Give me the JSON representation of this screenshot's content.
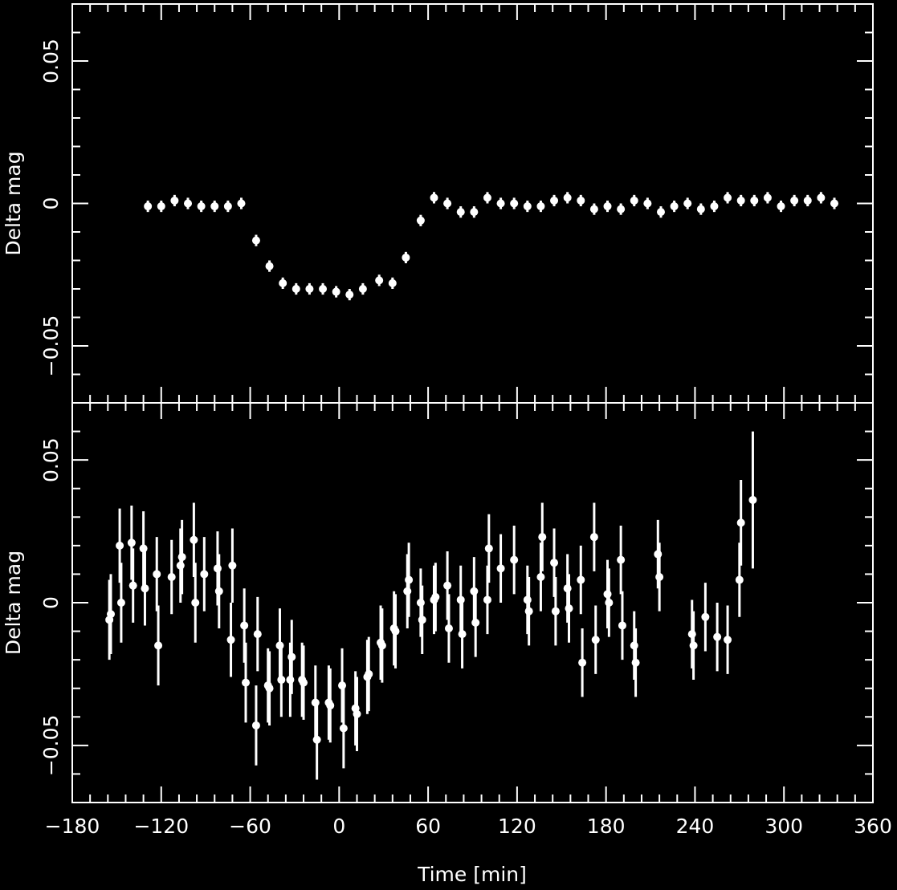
{
  "chart_data": [
    {
      "type": "scatter",
      "title": "",
      "xlabel": "",
      "ylabel": "Delta mag",
      "xlim": [
        -180,
        360
      ],
      "ylim": [
        -0.07,
        0.07
      ],
      "x_ticks": [
        -180,
        -120,
        -60,
        0,
        60,
        120,
        180,
        240,
        300,
        360
      ],
      "y_ticks": [
        -0.05,
        0,
        0.05
      ],
      "y_tick_labels": [
        "−0.05",
        "0",
        "0.05"
      ],
      "grid": false,
      "series": [
        {
          "error_bars": true,
          "points": [
            {
              "x": -129,
              "y": -0.001,
              "err": 0.002
            },
            {
              "x": -120,
              "y": -0.001,
              "err": 0.002
            },
            {
              "x": -111,
              "y": 0.001,
              "err": 0.002
            },
            {
              "x": -102,
              "y": 0.0,
              "err": 0.002
            },
            {
              "x": -93,
              "y": -0.001,
              "err": 0.002
            },
            {
              "x": -84,
              "y": -0.001,
              "err": 0.002
            },
            {
              "x": -75,
              "y": -0.001,
              "err": 0.002
            },
            {
              "x": -66,
              "y": 0.0,
              "err": 0.002
            },
            {
              "x": -56,
              "y": -0.013,
              "err": 0.002
            },
            {
              "x": -47,
              "y": -0.022,
              "err": 0.002
            },
            {
              "x": -38,
              "y": -0.028,
              "err": 0.002
            },
            {
              "x": -29,
              "y": -0.03,
              "err": 0.002
            },
            {
              "x": -20,
              "y": -0.03,
              "err": 0.002
            },
            {
              "x": -11,
              "y": -0.03,
              "err": 0.002
            },
            {
              "x": -2,
              "y": -0.031,
              "err": 0.002
            },
            {
              "x": 7,
              "y": -0.032,
              "err": 0.002
            },
            {
              "x": 16,
              "y": -0.03,
              "err": 0.002
            },
            {
              "x": 27,
              "y": -0.027,
              "err": 0.002
            },
            {
              "x": 36,
              "y": -0.028,
              "err": 0.002
            },
            {
              "x": 45,
              "y": -0.019,
              "err": 0.002
            },
            {
              "x": 55,
              "y": -0.006,
              "err": 0.002
            },
            {
              "x": 64,
              "y": 0.002,
              "err": 0.002
            },
            {
              "x": 73,
              "y": 0.0,
              "err": 0.002
            },
            {
              "x": 82,
              "y": -0.003,
              "err": 0.002
            },
            {
              "x": 91,
              "y": -0.003,
              "err": 0.002
            },
            {
              "x": 100,
              "y": 0.002,
              "err": 0.002
            },
            {
              "x": 109,
              "y": 0.0,
              "err": 0.002
            },
            {
              "x": 118,
              "y": 0.0,
              "err": 0.002
            },
            {
              "x": 127,
              "y": -0.001,
              "err": 0.002
            },
            {
              "x": 136,
              "y": -0.001,
              "err": 0.002
            },
            {
              "x": 145,
              "y": 0.001,
              "err": 0.002
            },
            {
              "x": 154,
              "y": 0.002,
              "err": 0.002
            },
            {
              "x": 163,
              "y": 0.001,
              "err": 0.002
            },
            {
              "x": 172,
              "y": -0.002,
              "err": 0.002
            },
            {
              "x": 181,
              "y": -0.001,
              "err": 0.002
            },
            {
              "x": 190,
              "y": -0.002,
              "err": 0.002
            },
            {
              "x": 199,
              "y": 0.001,
              "err": 0.002
            },
            {
              "x": 208,
              "y": 0.0,
              "err": 0.002
            },
            {
              "x": 217,
              "y": -0.003,
              "err": 0.002
            },
            {
              "x": 226,
              "y": -0.001,
              "err": 0.002
            },
            {
              "x": 235,
              "y": 0.0,
              "err": 0.002
            },
            {
              "x": 244,
              "y": -0.002,
              "err": 0.002
            },
            {
              "x": 253,
              "y": -0.001,
              "err": 0.002
            },
            {
              "x": 262,
              "y": 0.002,
              "err": 0.002
            },
            {
              "x": 271,
              "y": 0.001,
              "err": 0.002
            },
            {
              "x": 280,
              "y": 0.001,
              "err": 0.002
            },
            {
              "x": 289,
              "y": 0.002,
              "err": 0.002
            },
            {
              "x": 298,
              "y": -0.001,
              "err": 0.002
            },
            {
              "x": 307,
              "y": 0.001,
              "err": 0.002
            },
            {
              "x": 316,
              "y": 0.001,
              "err": 0.002
            },
            {
              "x": 325,
              "y": 0.002,
              "err": 0.002
            },
            {
              "x": 334,
              "y": 0.0,
              "err": 0.002
            }
          ]
        }
      ]
    },
    {
      "type": "scatter",
      "title": "",
      "xlabel": "Time [min]",
      "ylabel": "Delta mag",
      "xlim": [
        -180,
        360
      ],
      "ylim": [
        -0.07,
        0.07
      ],
      "x_ticks": [
        -180,
        -120,
        -60,
        0,
        60,
        120,
        180,
        240,
        300,
        360
      ],
      "x_tick_labels": [
        "−180",
        "−120",
        "−60",
        "0",
        "60",
        "120",
        "180",
        "240",
        "300",
        "360"
      ],
      "y_ticks": [
        -0.05,
        0,
        0.05
      ],
      "y_tick_labels": [
        "−0.05",
        "0",
        "0.05"
      ],
      "grid": false,
      "series": [
        {
          "error_bars": true,
          "points": [
            {
              "x": -155,
              "y": -0.006,
              "err": 0.014
            },
            {
              "x": -154,
              "y": -0.004,
              "err": 0.014
            },
            {
              "x": -148,
              "y": 0.02,
              "err": 0.013
            },
            {
              "x": -147,
              "y": 0.0,
              "err": 0.014
            },
            {
              "x": -140,
              "y": 0.021,
              "err": 0.013
            },
            {
              "x": -139,
              "y": 0.006,
              "err": 0.013
            },
            {
              "x": -132,
              "y": 0.019,
              "err": 0.013
            },
            {
              "x": -131,
              "y": 0.005,
              "err": 0.013
            },
            {
              "x": -123,
              "y": 0.01,
              "err": 0.013
            },
            {
              "x": -122,
              "y": -0.015,
              "err": 0.014
            },
            {
              "x": -113,
              "y": 0.009,
              "err": 0.013
            },
            {
              "x": -107,
              "y": 0.013,
              "err": 0.013
            },
            {
              "x": -106,
              "y": 0.016,
              "err": 0.013
            },
            {
              "x": -98,
              "y": 0.022,
              "err": 0.013
            },
            {
              "x": -97,
              "y": 0.0,
              "err": 0.014
            },
            {
              "x": -91,
              "y": 0.01,
              "err": 0.013
            },
            {
              "x": -82,
              "y": 0.012,
              "err": 0.013
            },
            {
              "x": -81,
              "y": 0.004,
              "err": 0.013
            },
            {
              "x": -73,
              "y": -0.013,
              "err": 0.013
            },
            {
              "x": -72,
              "y": 0.013,
              "err": 0.013
            },
            {
              "x": -64,
              "y": -0.008,
              "err": 0.013
            },
            {
              "x": -63,
              "y": -0.028,
              "err": 0.014
            },
            {
              "x": -56,
              "y": -0.043,
              "err": 0.014
            },
            {
              "x": -55,
              "y": -0.011,
              "err": 0.013
            },
            {
              "x": -48,
              "y": -0.029,
              "err": 0.013
            },
            {
              "x": -47,
              "y": -0.03,
              "err": 0.013
            },
            {
              "x": -40,
              "y": -0.015,
              "err": 0.013
            },
            {
              "x": -39,
              "y": -0.027,
              "err": 0.013
            },
            {
              "x": -33,
              "y": -0.027,
              "err": 0.013
            },
            {
              "x": -32,
              "y": -0.019,
              "err": 0.013
            },
            {
              "x": -25,
              "y": -0.027,
              "err": 0.013
            },
            {
              "x": -24,
              "y": -0.028,
              "err": 0.013
            },
            {
              "x": -16,
              "y": -0.035,
              "err": 0.013
            },
            {
              "x": -15,
              "y": -0.048,
              "err": 0.014
            },
            {
              "x": -7,
              "y": -0.035,
              "err": 0.013
            },
            {
              "x": -6,
              "y": -0.036,
              "err": 0.013
            },
            {
              "x": 2,
              "y": -0.029,
              "err": 0.013
            },
            {
              "x": 3,
              "y": -0.044,
              "err": 0.014
            },
            {
              "x": 11,
              "y": -0.037,
              "err": 0.013
            },
            {
              "x": 12,
              "y": -0.039,
              "err": 0.013
            },
            {
              "x": 19,
              "y": -0.026,
              "err": 0.013
            },
            {
              "x": 20,
              "y": -0.025,
              "err": 0.013
            },
            {
              "x": 28,
              "y": -0.014,
              "err": 0.013
            },
            {
              "x": 29,
              "y": -0.015,
              "err": 0.013
            },
            {
              "x": 37,
              "y": -0.009,
              "err": 0.013
            },
            {
              "x": 38,
              "y": -0.01,
              "err": 0.013
            },
            {
              "x": 46,
              "y": 0.004,
              "err": 0.013
            },
            {
              "x": 47,
              "y": 0.008,
              "err": 0.013
            },
            {
              "x": 55,
              "y": 0.0,
              "err": 0.012
            },
            {
              "x": 56,
              "y": -0.006,
              "err": 0.012
            },
            {
              "x": 64,
              "y": 0.001,
              "err": 0.012
            },
            {
              "x": 65,
              "y": 0.002,
              "err": 0.012
            },
            {
              "x": 73,
              "y": 0.006,
              "err": 0.012
            },
            {
              "x": 74,
              "y": -0.009,
              "err": 0.012
            },
            {
              "x": 82,
              "y": 0.001,
              "err": 0.012
            },
            {
              "x": 83,
              "y": -0.011,
              "err": 0.012
            },
            {
              "x": 91,
              "y": 0.004,
              "err": 0.012
            },
            {
              "x": 92,
              "y": -0.007,
              "err": 0.012
            },
            {
              "x": 100,
              "y": 0.001,
              "err": 0.012
            },
            {
              "x": 101,
              "y": 0.019,
              "err": 0.012
            },
            {
              "x": 109,
              "y": 0.012,
              "err": 0.012
            },
            {
              "x": 118,
              "y": 0.015,
              "err": 0.012
            },
            {
              "x": 127,
              "y": 0.001,
              "err": 0.012
            },
            {
              "x": 128,
              "y": -0.003,
              "err": 0.012
            },
            {
              "x": 136,
              "y": 0.009,
              "err": 0.012
            },
            {
              "x": 137,
              "y": 0.023,
              "err": 0.012
            },
            {
              "x": 145,
              "y": 0.014,
              "err": 0.012
            },
            {
              "x": 146,
              "y": -0.003,
              "err": 0.012
            },
            {
              "x": 154,
              "y": 0.005,
              "err": 0.012
            },
            {
              "x": 155,
              "y": -0.002,
              "err": 0.012
            },
            {
              "x": 163,
              "y": 0.008,
              "err": 0.012
            },
            {
              "x": 164,
              "y": -0.021,
              "err": 0.012
            },
            {
              "x": 172,
              "y": 0.023,
              "err": 0.012
            },
            {
              "x": 173,
              "y": -0.013,
              "err": 0.012
            },
            {
              "x": 181,
              "y": 0.003,
              "err": 0.012
            },
            {
              "x": 182,
              "y": 0.0,
              "err": 0.012
            },
            {
              "x": 190,
              "y": 0.015,
              "err": 0.012
            },
            {
              "x": 191,
              "y": -0.008,
              "err": 0.012
            },
            {
              "x": 199,
              "y": -0.015,
              "err": 0.012
            },
            {
              "x": 200,
              "y": -0.021,
              "err": 0.012
            },
            {
              "x": 215,
              "y": 0.017,
              "err": 0.012
            },
            {
              "x": 216,
              "y": 0.009,
              "err": 0.012
            },
            {
              "x": 238,
              "y": -0.011,
              "err": 0.012
            },
            {
              "x": 239,
              "y": -0.015,
              "err": 0.012
            },
            {
              "x": 247,
              "y": -0.005,
              "err": 0.012
            },
            {
              "x": 255,
              "y": -0.012,
              "err": 0.012
            },
            {
              "x": 262,
              "y": -0.013,
              "err": 0.012
            },
            {
              "x": 270,
              "y": 0.008,
              "err": 0.013
            },
            {
              "x": 271,
              "y": 0.028,
              "err": 0.015
            },
            {
              "x": 279,
              "y": 0.036,
              "err": 0.024
            }
          ]
        }
      ]
    }
  ]
}
